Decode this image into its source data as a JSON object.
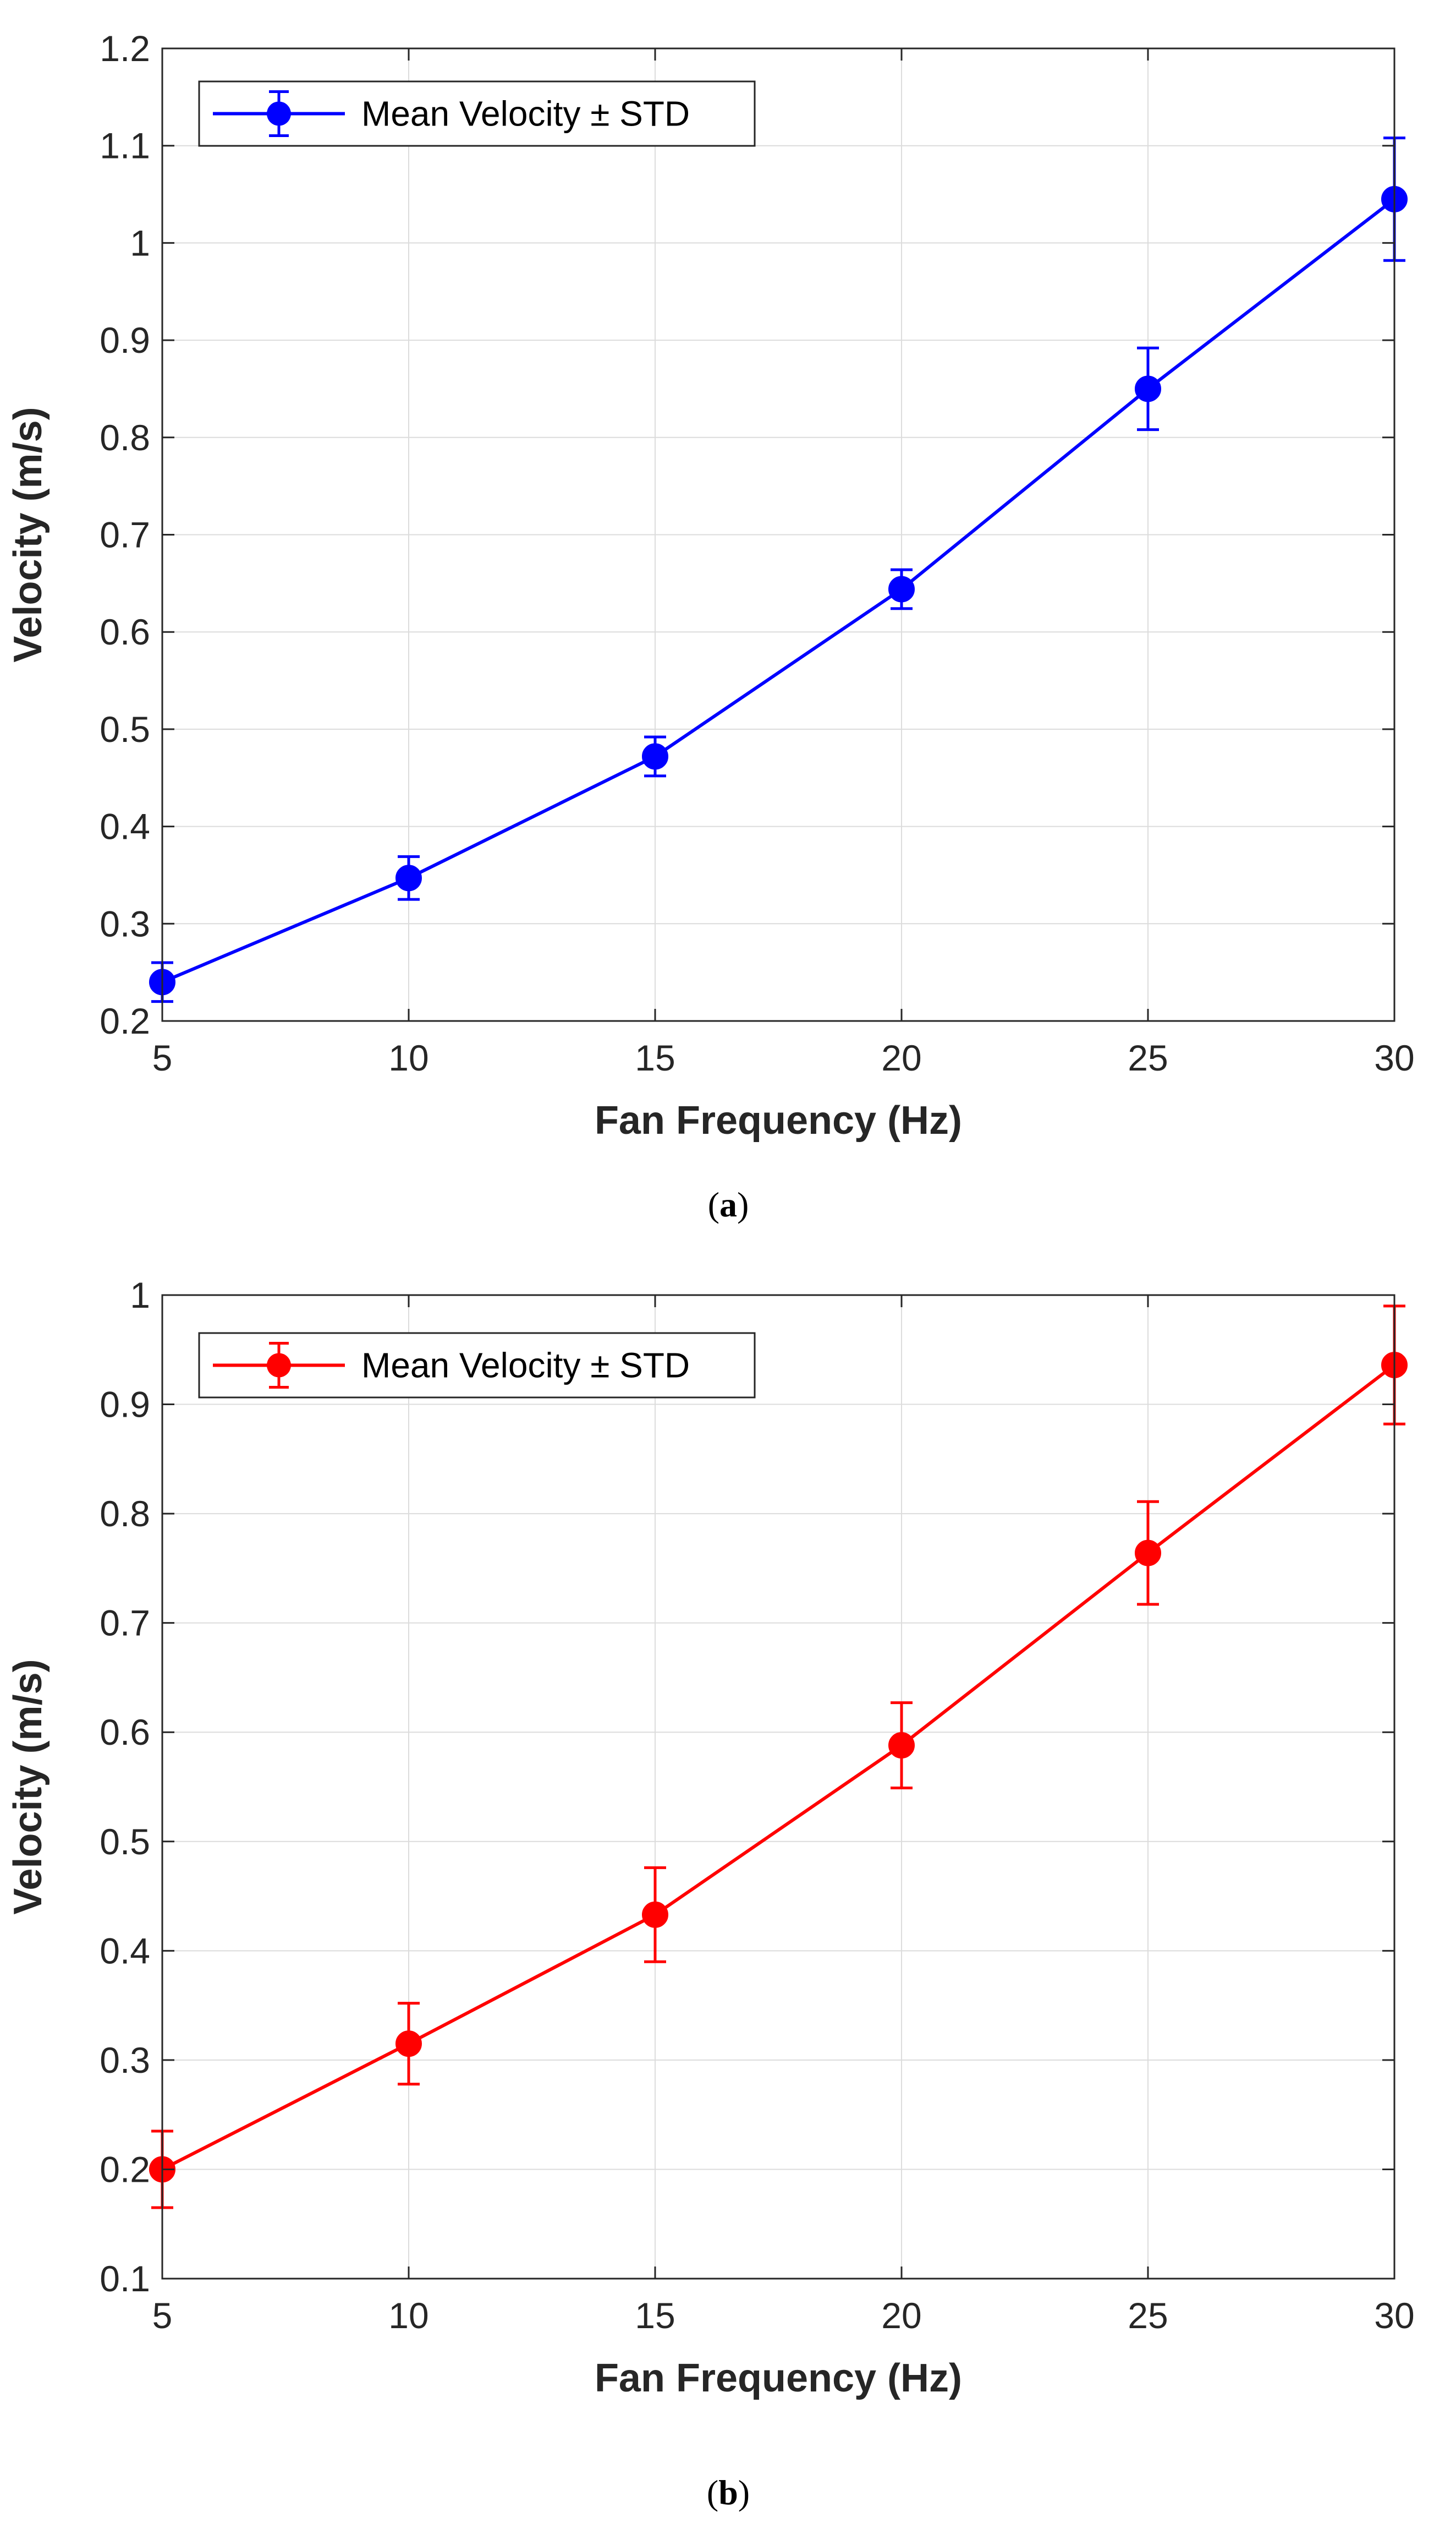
{
  "chart_data": [
    {
      "id": "a",
      "type": "line",
      "caption": {
        "open": "(",
        "letter": "a",
        "close": ")"
      },
      "xlabel": "Fan Frequency (Hz)",
      "ylabel": "Velocity (m/s)",
      "xlim": [
        5,
        30
      ],
      "ylim": [
        0.2,
        1.2
      ],
      "xticks": [
        5,
        10,
        15,
        20,
        25,
        30
      ],
      "yticks": [
        0.2,
        0.3,
        0.4,
        0.5,
        0.6,
        0.7,
        0.8,
        0.9,
        1.0,
        1.1,
        1.2
      ],
      "ytick_labels": [
        "0.2",
        "0.3",
        "0.4",
        "0.5",
        "0.6",
        "0.7",
        "0.8",
        "0.9",
        "1",
        "1.1",
        "1.2"
      ],
      "grid": true,
      "legend": {
        "label": "Mean Velocity ± STD",
        "placement": "top-left"
      },
      "color": "#0000ff",
      "series": [
        {
          "name": "Mean Velocity ± STD",
          "x": [
            5,
            10,
            15,
            20,
            25,
            30
          ],
          "y": [
            0.24,
            0.347,
            0.472,
            0.644,
            0.85,
            1.045
          ],
          "std": [
            0.02,
            0.022,
            0.02,
            0.02,
            0.042,
            0.063
          ]
        }
      ]
    },
    {
      "id": "b",
      "type": "line",
      "caption": {
        "open": "(",
        "letter": "b",
        "close": ")"
      },
      "xlabel": "Fan Frequency (Hz)",
      "ylabel": "Velocity (m/s)",
      "xlim": [
        5,
        30
      ],
      "ylim": [
        0.1,
        1.0
      ],
      "xticks": [
        5,
        10,
        15,
        20,
        25,
        30
      ],
      "yticks": [
        0.1,
        0.2,
        0.3,
        0.4,
        0.5,
        0.6,
        0.7,
        0.8,
        0.9,
        1.0
      ],
      "ytick_labels": [
        "0.1",
        "0.2",
        "0.3",
        "0.4",
        "0.5",
        "0.6",
        "0.7",
        "0.8",
        "0.9",
        "1"
      ],
      "grid": true,
      "legend": {
        "label": "Mean Velocity ± STD",
        "placement": "top-left"
      },
      "color": "#ff0000",
      "series": [
        {
          "name": "Mean Velocity ± STD",
          "x": [
            5,
            10,
            15,
            20,
            25,
            30
          ],
          "y": [
            0.2,
            0.315,
            0.433,
            0.588,
            0.764,
            0.936
          ],
          "std": [
            0.035,
            0.037,
            0.043,
            0.039,
            0.047,
            0.054
          ]
        }
      ]
    }
  ]
}
